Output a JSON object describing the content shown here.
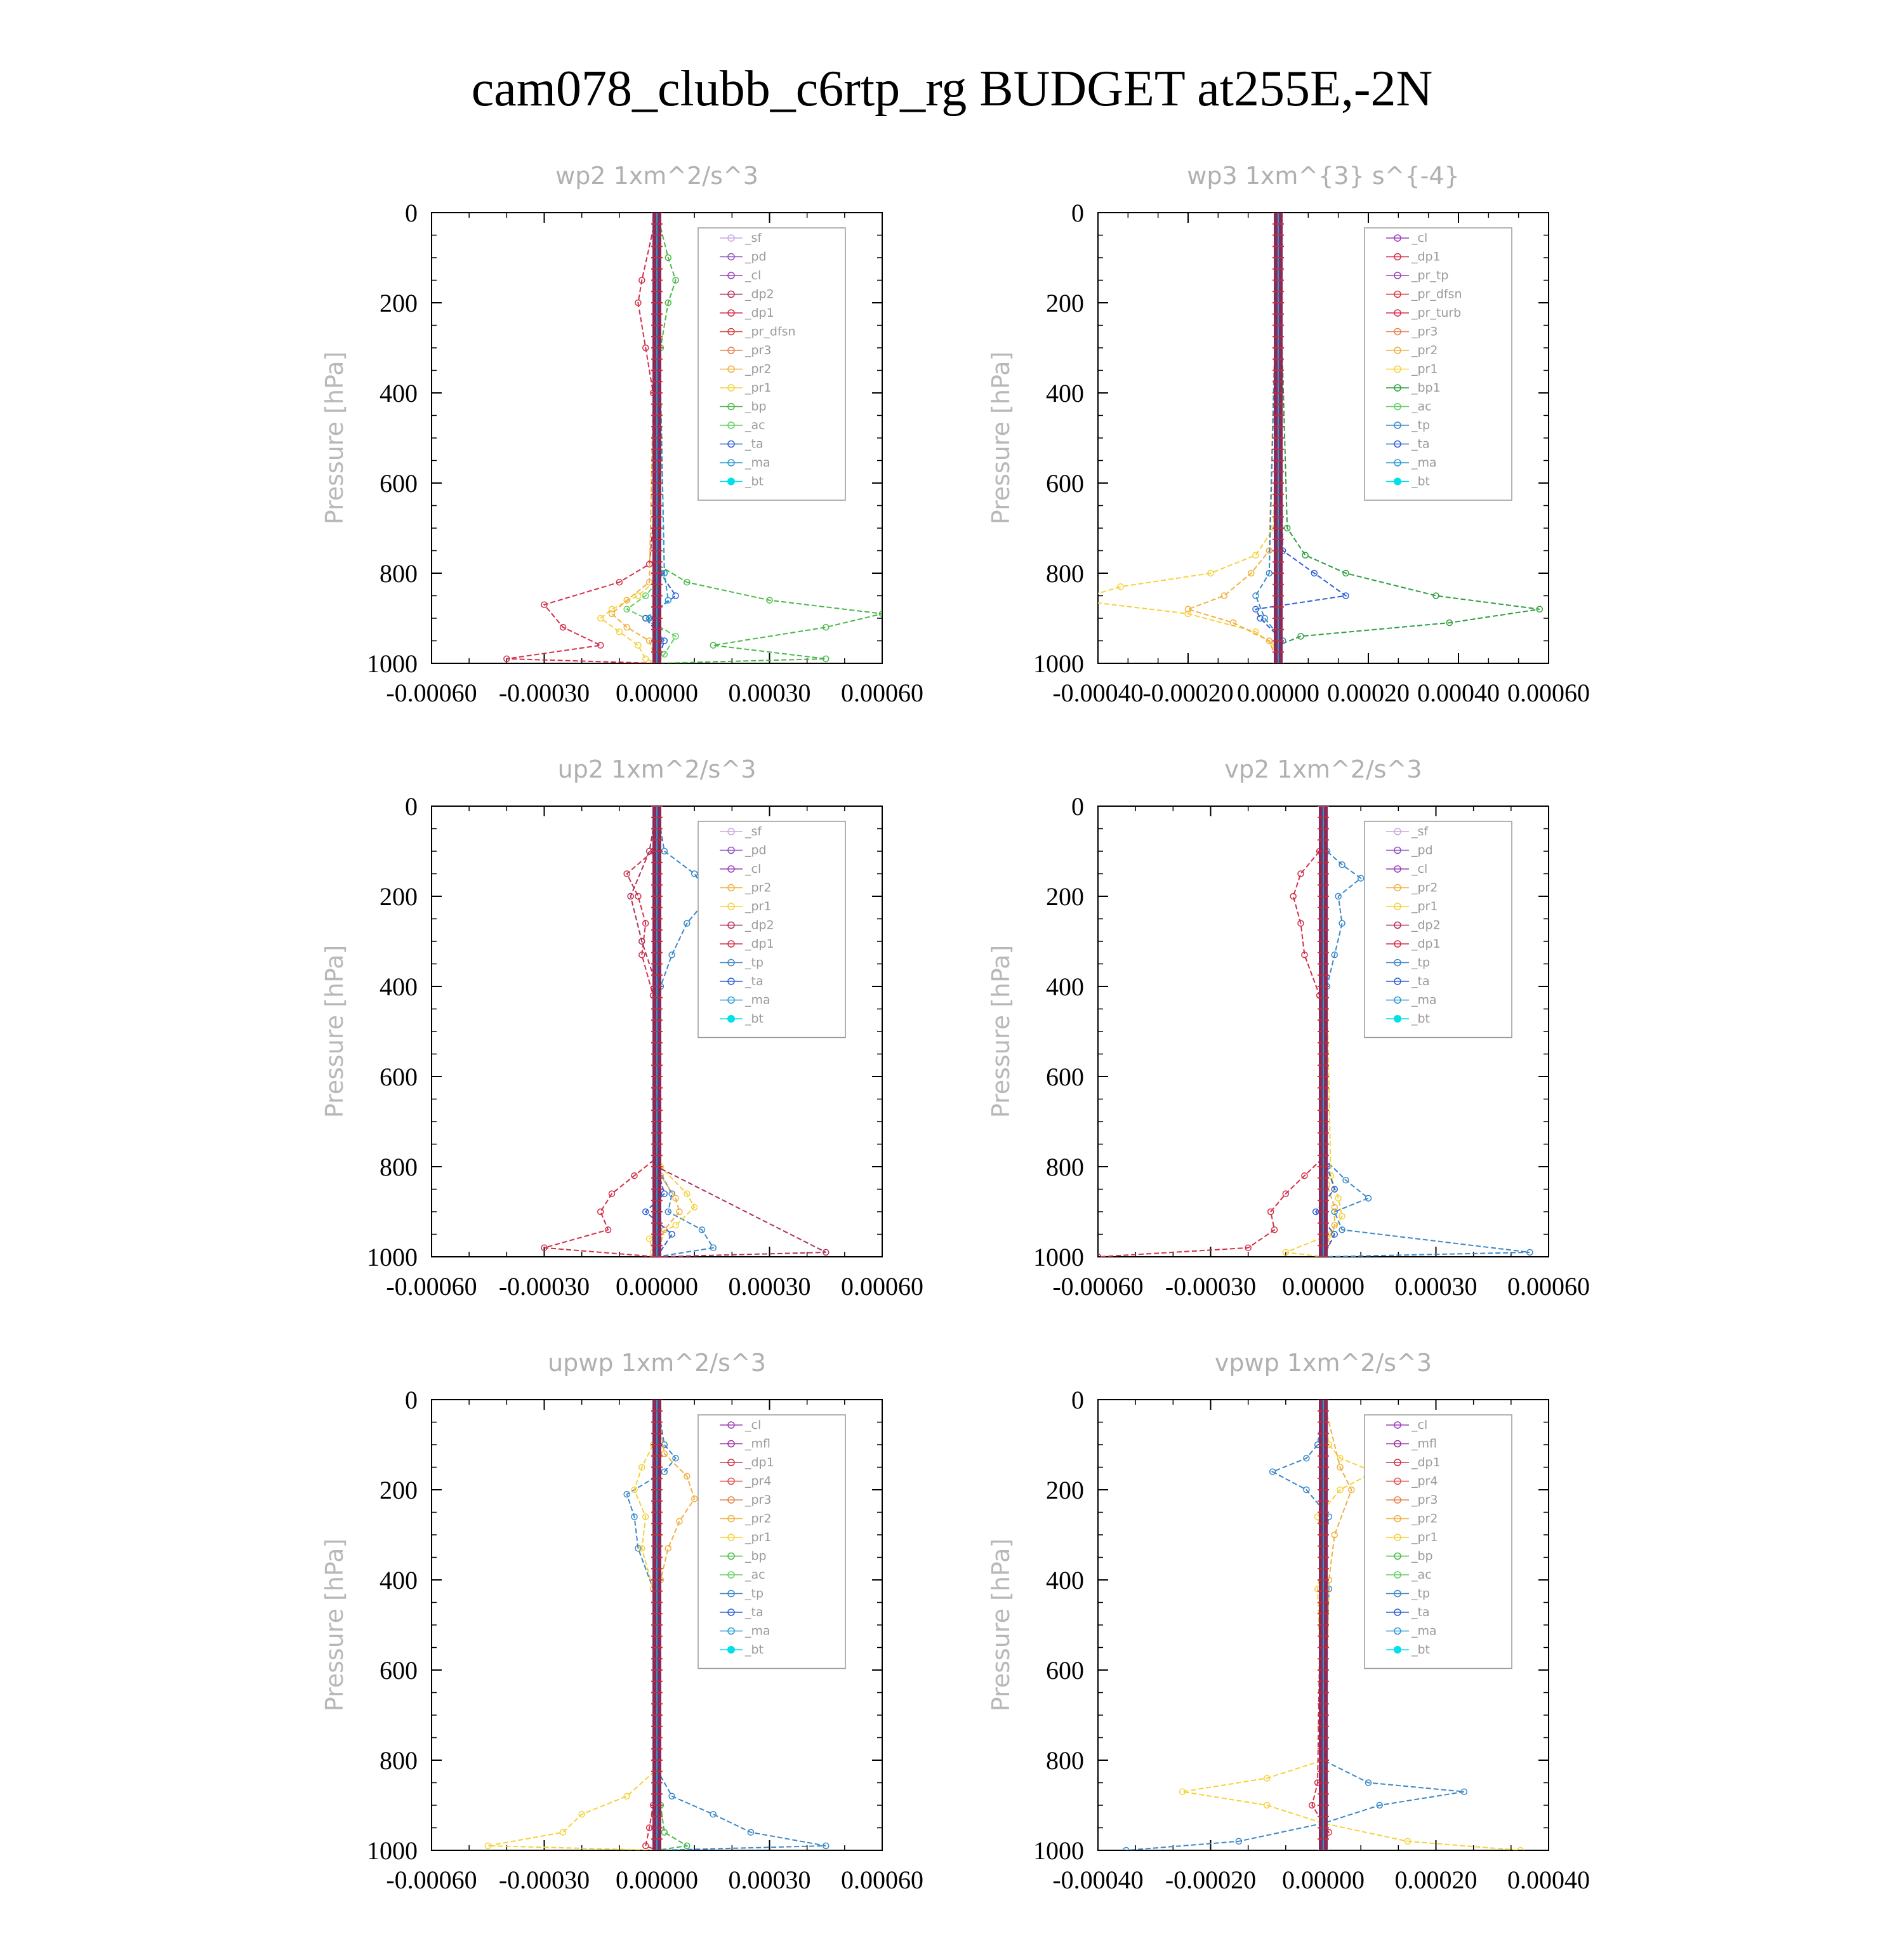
{
  "title": "cam078_clubb_c6rtp_rg  BUDGET at255E,-2N",
  "colors": {
    "_sf": "#c9a7e0",
    "_pd": "#8c4fbf",
    "_cl": "#9b3fb8",
    "_mfl": "#9b2fa0",
    "_dp2": "#b0305a",
    "_dp1": "#d42e4a",
    "_pr_tp": "#9b3fb8",
    "_pr_dfsn": "#d43a3a",
    "_pr_turb": "#d42e4a",
    "_pr4": "#e25050",
    "_pr3": "#e8804a",
    "_pr2": "#f0b040",
    "_pr1": "#f5d23a",
    "_bp": "#48b848",
    "_bp1": "#2e9e40",
    "_ac": "#60d060",
    "_tp": "#3a88c8",
    "_ta": "#3060d8",
    "_ma": "#2a9ad0",
    "_bt": "#00e0e8"
  },
  "chart_data": [
    {
      "type": "line",
      "title": "wp2   1xm^2/s^3",
      "ylabel": "Pressure [hPa]",
      "ylim": [
        1000,
        0
      ],
      "xlim": [
        -0.0006,
        0.0006
      ],
      "xticks": [
        "-0.00060",
        "-0.00030",
        "0.00000",
        "0.00030",
        "0.00060"
      ],
      "yticks": [
        "0",
        "200",
        "400",
        "600",
        "800",
        "1000"
      ],
      "legend": [
        "_sf",
        "_pd",
        "_cl",
        "_dp2",
        "_dp1",
        "_pr_dfsn",
        "_pr3",
        "_pr2",
        "_pr1",
        "_bp",
        "_ac",
        "_ta",
        "_ma",
        "_bt"
      ],
      "legend_position": "top-right",
      "series": [
        {
          "name": "_dp1",
          "p": [
            0,
            150,
            200,
            300,
            400,
            600,
            780,
            820,
            870,
            920,
            960,
            990,
            1000
          ],
          "x": [
            0,
            -4e-05,
            -5e-05,
            -3e-05,
            -1e-05,
            0,
            -2e-05,
            -0.0001,
            -0.0003,
            -0.00025,
            -0.00015,
            -0.0004,
            0
          ]
        },
        {
          "name": "_pr1",
          "p": [
            0,
            800,
            850,
            880,
            900,
            930,
            960,
            990,
            1000
          ],
          "x": [
            0,
            2e-05,
            -5e-05,
            -0.00012,
            -0.00015,
            -0.0001,
            -5e-05,
            -3e-05,
            0
          ]
        },
        {
          "name": "_pr2",
          "p": [
            0,
            820,
            860,
            890,
            920,
            950,
            1000
          ],
          "x": [
            0,
            -2e-05,
            -8e-05,
            -0.00012,
            -8e-05,
            -2e-05,
            0
          ]
        },
        {
          "name": "_bp",
          "p": [
            0,
            100,
            150,
            200,
            300,
            780,
            820,
            860,
            890,
            920,
            960,
            990,
            1000
          ],
          "x": [
            0,
            3e-05,
            5e-05,
            3e-05,
            1e-05,
            0,
            8e-05,
            0.0003,
            0.0006,
            0.00045,
            0.00015,
            0.00045,
            0
          ]
        },
        {
          "name": "_ac",
          "p": [
            0,
            800,
            850,
            880,
            900,
            940,
            980,
            1000
          ],
          "x": [
            0,
            2e-05,
            -3e-05,
            -8e-05,
            -3e-05,
            5e-05,
            2e-05,
            0
          ]
        },
        {
          "name": "_ta",
          "p": [
            0,
            800,
            850,
            900,
            950,
            1000
          ],
          "x": [
            0,
            1e-05,
            5e-05,
            -3e-05,
            2e-05,
            0
          ]
        },
        {
          "name": "_ma",
          "p": [
            0,
            800,
            860,
            900,
            950,
            1000
          ],
          "x": [
            0,
            2e-05,
            3e-05,
            -2e-05,
            1e-05,
            0
          ]
        }
      ]
    },
    {
      "type": "line",
      "title": "wp3   1xm^{3} s^{-4}",
      "ylabel": "Pressure [hPa]",
      "ylim": [
        1000,
        0
      ],
      "xlim": [
        -0.0004,
        0.0006
      ],
      "xticks": [
        "-0.00040",
        "-0.00020",
        "0.00000",
        "0.00020",
        "0.00040",
        "0.00060"
      ],
      "yticks": [
        "0",
        "200",
        "400",
        "600",
        "800",
        "1000"
      ],
      "legend": [
        "_cl",
        "_dp1",
        "_pr_tp",
        "_pr_dfsn",
        "_pr_turb",
        "_pr3",
        "_pr2",
        "_pr1",
        "_bp1",
        "_ac",
        "_tp",
        "_ta",
        "_ma",
        "_bt"
      ],
      "legend_position": "top-right",
      "series": [
        {
          "name": "_pr1",
          "p": [
            0,
            700,
            760,
            800,
            830,
            860,
            890,
            930,
            960,
            1000
          ],
          "x": [
            0,
            -1e-05,
            -5e-05,
            -0.00015,
            -0.00035,
            -0.00045,
            -0.0002,
            -5e-05,
            -1e-05,
            0
          ]
        },
        {
          "name": "_pr2",
          "p": [
            0,
            750,
            800,
            850,
            880,
            910,
            950,
            1000
          ],
          "x": [
            0,
            -2e-05,
            -6e-05,
            -0.00012,
            -0.0002,
            -0.0001,
            -2e-05,
            0
          ]
        },
        {
          "name": "_bp1",
          "p": [
            0,
            700,
            760,
            800,
            850,
            880,
            910,
            940,
            960,
            1000
          ],
          "x": [
            0,
            2e-05,
            6e-05,
            0.00015,
            0.00035,
            0.00058,
            0.00038,
            5e-05,
            0,
            0
          ]
        },
        {
          "name": "_ta",
          "p": [
            0,
            750,
            800,
            850,
            880,
            900,
            950,
            1000
          ],
          "x": [
            0,
            1e-05,
            8e-05,
            0.00015,
            -5e-05,
            -4e-05,
            1e-05,
            0
          ]
        },
        {
          "name": "_tp",
          "p": [
            0,
            800,
            850,
            900,
            950,
            1000
          ],
          "x": [
            0,
            -2e-05,
            -5e-05,
            -3e-05,
            1e-05,
            0
          ]
        }
      ]
    },
    {
      "type": "line",
      "title": "up2   1xm^2/s^3",
      "ylabel": "Pressure [hPa]",
      "ylim": [
        1000,
        0
      ],
      "xlim": [
        -0.0006,
        0.0006
      ],
      "xticks": [
        "-0.00060",
        "-0.00030",
        "0.00000",
        "0.00030",
        "0.00060"
      ],
      "yticks": [
        "0",
        "200",
        "400",
        "600",
        "800",
        "1000"
      ],
      "legend": [
        "_sf",
        "_pd",
        "_cl",
        "_pr2",
        "_pr1",
        "_dp2",
        "_dp1",
        "_tp",
        "_ta",
        "_ma",
        "_bt"
      ],
      "legend_position": "top-right",
      "series": [
        {
          "name": "_tp",
          "p": [
            0,
            100,
            150,
            200,
            260,
            330,
            400,
            800,
            860,
            900,
            940,
            980,
            1000
          ],
          "x": [
            0,
            2e-05,
            0.0001,
            0.00014,
            8e-05,
            4e-05,
            1e-05,
            0,
            4e-05,
            3e-05,
            0.00012,
            0.00015,
            0
          ]
        },
        {
          "name": "_dp1",
          "p": [
            0,
            100,
            150,
            200,
            260,
            330,
            420,
            780,
            820,
            860,
            900,
            940,
            980,
            1000
          ],
          "x": [
            0,
            -1e-05,
            -8e-05,
            -5e-05,
            -3e-05,
            -4e-05,
            -1e-05,
            0,
            -6e-05,
            -0.00012,
            -0.00015,
            -0.00013,
            -0.0003,
            0
          ]
        },
        {
          "name": "_pr1",
          "p": [
            0,
            800,
            860,
            890,
            930,
            960,
            990,
            1000
          ],
          "x": [
            0,
            1e-05,
            8e-05,
            0.0001,
            5e-05,
            -2e-05,
            -1e-05,
            0
          ]
        },
        {
          "name": "_pr2",
          "p": [
            0,
            820,
            870,
            900,
            940,
            1000
          ],
          "x": [
            0,
            1e-05,
            5e-05,
            6e-05,
            2e-05,
            0
          ]
        },
        {
          "name": "_dp2",
          "p": [
            0,
            100,
            200,
            300,
            400,
            800,
            990,
            1000
          ],
          "x": [
            0,
            -2e-05,
            -7e-05,
            -4e-05,
            0,
            0,
            0.00045,
            0
          ]
        },
        {
          "name": "_ta",
          "p": [
            0,
            800,
            860,
            900,
            950,
            1000
          ],
          "x": [
            0,
            0,
            2e-05,
            -3e-05,
            4e-05,
            0
          ]
        }
      ]
    },
    {
      "type": "line",
      "title": "vp2   1xm^2/s^3",
      "ylabel": "Pressure [hPa]",
      "ylim": [
        1000,
        0
      ],
      "xlim": [
        -0.0006,
        0.0006
      ],
      "xticks": [
        "-0.00060",
        "-0.00030",
        "0.00000",
        "0.00030",
        "0.00060"
      ],
      "yticks": [
        "0",
        "200",
        "400",
        "600",
        "800",
        "1000"
      ],
      "legend": [
        "_sf",
        "_pd",
        "_cl",
        "_pr2",
        "_pr1",
        "_dp2",
        "_dp1",
        "_tp",
        "_ta",
        "_ma",
        "_bt"
      ],
      "legend_position": "top-right",
      "series": [
        {
          "name": "_tp",
          "p": [
            0,
            100,
            130,
            160,
            200,
            260,
            330,
            400,
            780,
            830,
            870,
            900,
            940,
            990,
            1000
          ],
          "x": [
            0,
            1e-05,
            5e-05,
            0.0001,
            4e-05,
            5e-05,
            3e-05,
            1e-05,
            0,
            6e-05,
            0.00012,
            3e-05,
            5e-05,
            0.00055,
            0
          ]
        },
        {
          "name": "_dp1",
          "p": [
            0,
            100,
            150,
            200,
            260,
            330,
            420,
            780,
            820,
            860,
            900,
            940,
            980,
            1000
          ],
          "x": [
            0,
            -1e-05,
            -6e-05,
            -8e-05,
            -6e-05,
            -5e-05,
            -1e-05,
            0,
            -5e-05,
            -0.0001,
            -0.00014,
            -0.00013,
            -0.0002,
            -0.0006
          ]
        },
        {
          "name": "_pr1",
          "p": [
            0,
            820,
            870,
            910,
            950,
            990,
            1000
          ],
          "x": [
            0,
            2e-05,
            4e-05,
            5e-05,
            2e-05,
            -0.0001,
            0
          ]
        },
        {
          "name": "_pr2",
          "p": [
            0,
            840,
            890,
            930,
            970,
            1000
          ],
          "x": [
            0,
            1e-05,
            3e-05,
            3e-05,
            1e-05,
            0
          ]
        },
        {
          "name": "_ta",
          "p": [
            0,
            800,
            850,
            900,
            950,
            1000
          ],
          "x": [
            0,
            1e-05,
            3e-05,
            -2e-05,
            3e-05,
            0
          ]
        }
      ]
    },
    {
      "type": "line",
      "title": "upwp   1xm^2/s^3",
      "ylabel": "Pressure [hPa]",
      "ylim": [
        1000,
        0
      ],
      "xlim": [
        -0.0006,
        0.0006
      ],
      "xticks": [
        "-0.00060",
        "-0.00030",
        "0.00000",
        "0.00030",
        "0.00060"
      ],
      "yticks": [
        "0",
        "200",
        "400",
        "600",
        "800",
        "1000"
      ],
      "legend": [
        "_cl",
        "_mfl",
        "_dp1",
        "_pr4",
        "_pr3",
        "_pr2",
        "_pr1",
        "_bp",
        "_ac",
        "_tp",
        "_ta",
        "_ma",
        "_bt"
      ],
      "legend_position": "top-right",
      "series": [
        {
          "name": "_tp",
          "p": [
            0,
            100,
            130,
            160,
            210,
            260,
            330,
            420,
            820,
            880,
            920,
            960,
            990,
            1000
          ],
          "x": [
            0,
            2e-05,
            5e-05,
            2e-05,
            -8e-05,
            -6e-05,
            -5e-05,
            -1e-05,
            0,
            4e-05,
            0.00015,
            0.00025,
            0.00045,
            0
          ]
        },
        {
          "name": "_pr1",
          "p": [
            0,
            100,
            150,
            200,
            260,
            330,
            420,
            820,
            880,
            920,
            960,
            990,
            1000
          ],
          "x": [
            0,
            -1e-05,
            -4e-05,
            -6e-05,
            -3e-05,
            -4e-05,
            -1e-05,
            0,
            -8e-05,
            -0.0002,
            -0.00025,
            -0.00045,
            0
          ]
        },
        {
          "name": "_pr2",
          "p": [
            0,
            120,
            170,
            220,
            270,
            330,
            400,
            1000
          ],
          "x": [
            0,
            2e-05,
            8e-05,
            0.0001,
            6e-05,
            3e-05,
            1e-05,
            0
          ]
        },
        {
          "name": "_dp1",
          "p": [
            0,
            900,
            950,
            990,
            1000
          ],
          "x": [
            0,
            -1e-05,
            -2e-05,
            -3e-05,
            0
          ]
        },
        {
          "name": "_bp",
          "p": [
            0,
            900,
            960,
            990,
            1000
          ],
          "x": [
            0,
            1e-05,
            2e-05,
            8e-05,
            0
          ]
        }
      ]
    },
    {
      "type": "line",
      "title": "vpwp   1xm^2/s^3",
      "ylabel": "Pressure [hPa]",
      "ylim": [
        1000,
        0
      ],
      "xlim": [
        -0.0004,
        0.0004
      ],
      "xticks": [
        "-0.00040",
        "-0.00020",
        "0.00000",
        "0.00020",
        "0.00040"
      ],
      "yticks": [
        "0",
        "200",
        "400",
        "600",
        "800",
        "1000"
      ],
      "legend": [
        "_cl",
        "_mfl",
        "_dp1",
        "_pr4",
        "_pr3",
        "_pr2",
        "_pr1",
        "_bp",
        "_ac",
        "_tp",
        "_ta",
        "_ma",
        "_bt"
      ],
      "legend_position": "top-right",
      "series": [
        {
          "name": "_tp",
          "p": [
            0,
            100,
            130,
            160,
            200,
            260,
            330,
            420,
            800,
            850,
            870,
            900,
            940,
            980,
            1000
          ],
          "x": [
            0,
            -1e-05,
            -3e-05,
            -9e-05,
            -3e-05,
            1e-05,
            0,
            1e-05,
            0,
            8e-05,
            0.00025,
            0.0001,
            0,
            -0.00015,
            -0.00035
          ]
        },
        {
          "name": "_pr1",
          "p": [
            0,
            100,
            130,
            160,
            200,
            260,
            330,
            420,
            800,
            840,
            870,
            900,
            940,
            980,
            1000
          ],
          "x": [
            0,
            1e-05,
            3e-05,
            9e-05,
            3e-05,
            -1e-05,
            0,
            -1e-05,
            0,
            -0.0001,
            -0.00025,
            -0.0001,
            0,
            0.00015,
            0.00035
          ]
        },
        {
          "name": "_pr2",
          "p": [
            0,
            150,
            200,
            300,
            400,
            1000
          ],
          "x": [
            0,
            3e-05,
            5e-05,
            2e-05,
            1e-05,
            0
          ]
        },
        {
          "name": "_dp1",
          "p": [
            0,
            850,
            900,
            960,
            1000
          ],
          "x": [
            0,
            -1e-05,
            -2e-05,
            1e-05,
            0
          ]
        }
      ]
    }
  ]
}
